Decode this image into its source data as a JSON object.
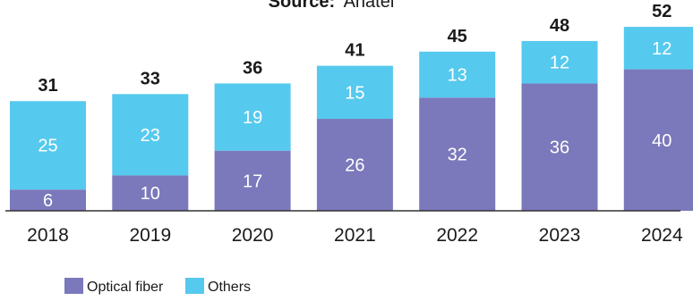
{
  "header": {
    "source_label": "Source:",
    "source_value": "Anatel"
  },
  "colors": {
    "optical_fiber": "#7b78bb",
    "others": "#56c9ee",
    "axis": "#333333",
    "text": "#1a1a1a",
    "segment_text": "#ffffff"
  },
  "chart_data": {
    "type": "bar",
    "stacked": true,
    "categories": [
      "2018",
      "2019",
      "2020",
      "2021",
      "2022",
      "2023",
      "2024"
    ],
    "series": [
      {
        "name": "Optical fiber",
        "values": [
          6,
          10,
          17,
          26,
          32,
          36,
          40
        ]
      },
      {
        "name": "Others",
        "values": [
          25,
          23,
          19,
          15,
          13,
          12,
          12
        ]
      }
    ],
    "totals": [
      31,
      33,
      36,
      41,
      45,
      48,
      52
    ],
    "title": "",
    "xlabel": "",
    "ylabel": "",
    "ylim": [
      0,
      52
    ],
    "grid": false,
    "legend_position": "bottom-left"
  }
}
